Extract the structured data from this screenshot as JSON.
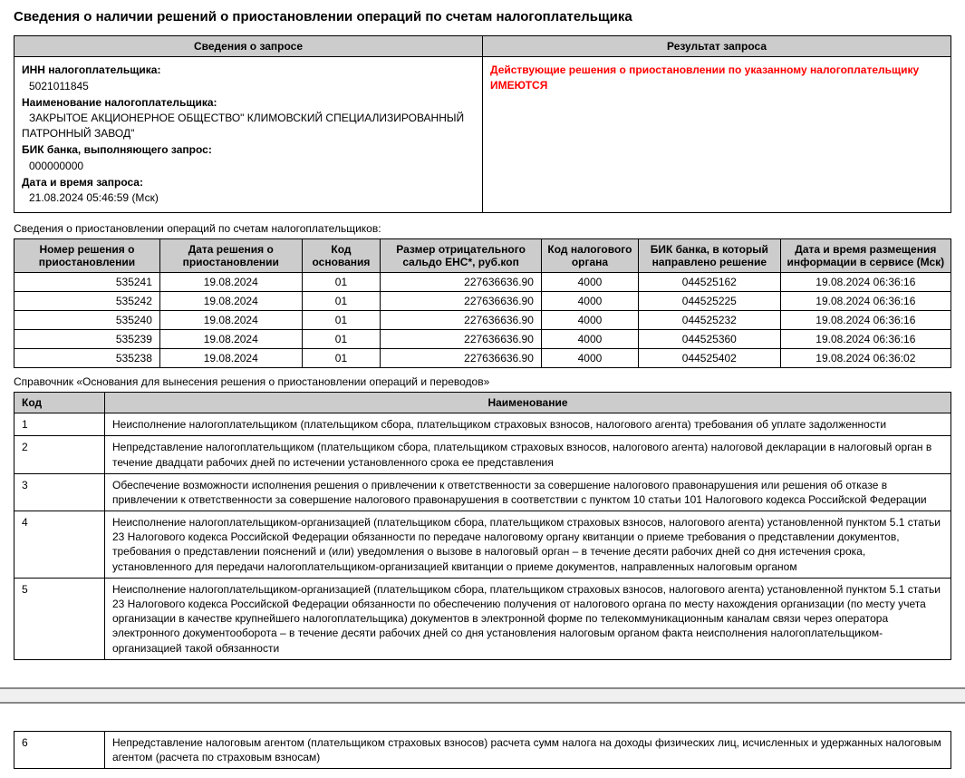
{
  "title": "Сведения о наличии решений о приостановлении операций по счетам налогоплательщика",
  "info_table": {
    "header_left": "Сведения о запросе",
    "header_right": "Результат запроса",
    "inn_label": "ИНН налогоплательщика:",
    "inn_value": "5021011845",
    "name_label": "Наименование налогоплательщика:",
    "name_value": "ЗАКРЫТОЕ АКЦИОНЕРНОЕ ОБЩЕСТВО\" КЛИМОВСКИЙ СПЕЦИАЛИЗИРОВАННЫЙ ПАТРОННЫЙ ЗАВОД\"",
    "bik_label": "БИК банка, выполняющего запрос:",
    "bik_value": "000000000",
    "date_label": "Дата и время запроса:",
    "date_value": "21.08.2024 05:46:59 (Мск)",
    "result_text": "Действующие решения о приостановлении по указанному налогоплательщику ИМЕЮТСЯ"
  },
  "suspension_subtitle": "Сведения о приостановлении операций по счетам налогоплательщиков:",
  "suspension_headers": [
    "Номер решения о приостановлении",
    "Дата решения о приостановлении",
    "Код основания",
    "Размер отрицательного сальдо ЕНС*, руб.коп",
    "Код налогового органа",
    "БИК банка, в который направлено решение",
    "Дата и время размещения информации в сервисе (Мск)"
  ],
  "suspension_rows": [
    [
      "535241",
      "19.08.2024",
      "01",
      "227636636.90",
      "4000",
      "044525162",
      "19.08.2024 06:36:16"
    ],
    [
      "535242",
      "19.08.2024",
      "01",
      "227636636.90",
      "4000",
      "044525225",
      "19.08.2024 06:36:16"
    ],
    [
      "535240",
      "19.08.2024",
      "01",
      "227636636.90",
      "4000",
      "044525232",
      "19.08.2024 06:36:16"
    ],
    [
      "535239",
      "19.08.2024",
      "01",
      "227636636.90",
      "4000",
      "044525360",
      "19.08.2024 06:36:16"
    ],
    [
      "535238",
      "19.08.2024",
      "01",
      "227636636.90",
      "4000",
      "044525402",
      "19.08.2024 06:36:02"
    ]
  ],
  "reference_subtitle": "Справочник «Основания для вынесения решения о приостановлении операций и переводов»",
  "reference_headers": [
    "Код",
    "Наименование"
  ],
  "reference_rows": [
    [
      "1",
      "Неисполнение налогоплательщиком (плательщиком сбора, плательщиком страховых взносов, налогового агента) требования об уплате задолженности"
    ],
    [
      "2",
      "Непредставление налогоплательщиком (плательщиком сбора, плательщиком страховых взносов, налогового агента) налоговой декларации в налоговый орган в течение двадцати рабочих дней по истечении установленного срока ее представления"
    ],
    [
      "3",
      "Обеспечение возможности исполнения решения о привлечении к ответственности за совершение налогового правонарушения или решения об отказе в привлечении к ответственности за совершение налогового правонарушения в соответствии с пунктом 10 статьи 101 Налогового кодекса Российской Федерации"
    ],
    [
      "4",
      "Неисполнение налогоплательщиком-организацией (плательщиком сбора, плательщиком страховых взносов, налогового агента) установленной пунктом 5.1 статьи 23 Налогового кодекса Российской Федерации обязанности по передаче налоговому органу квитанции о приеме требования о представлении документов, требования о представлении пояснений и (или) уведомления о вызове в налоговый орган – в течение десяти рабочих дней со дня истечения срока, установленного для передачи налогоплательщиком-организацией квитанции о приеме документов, направленных налоговым органом"
    ],
    [
      "5",
      "Неисполнение налогоплательщиком-организацией (плательщиком сбора, плательщиком страховых взносов, налогового агента) установленной пунктом 5.1 статьи 23 Налогового кодекса Российской Федерации обязанности по обеспечению получения от налогового органа по месту нахождения организации (по месту учета организации в качестве крупнейшего налогоплательщика) документов в электронной форме по телекоммуникационным каналам связи через оператора электронного документооборота – в течение десяти рабочих дней со дня установления налоговым органом факта неисполнения налогоплательщиком-организацией такой обязанности"
    ]
  ],
  "reference_rows_page2": [
    [
      "6",
      "Непредставление налоговым агентом (плательщиком страховых взносов) расчета сумм налога на доходы физических лиц, исчисленных и удержанных налоговым агентом (расчета по страховым взносам)"
    ]
  ]
}
